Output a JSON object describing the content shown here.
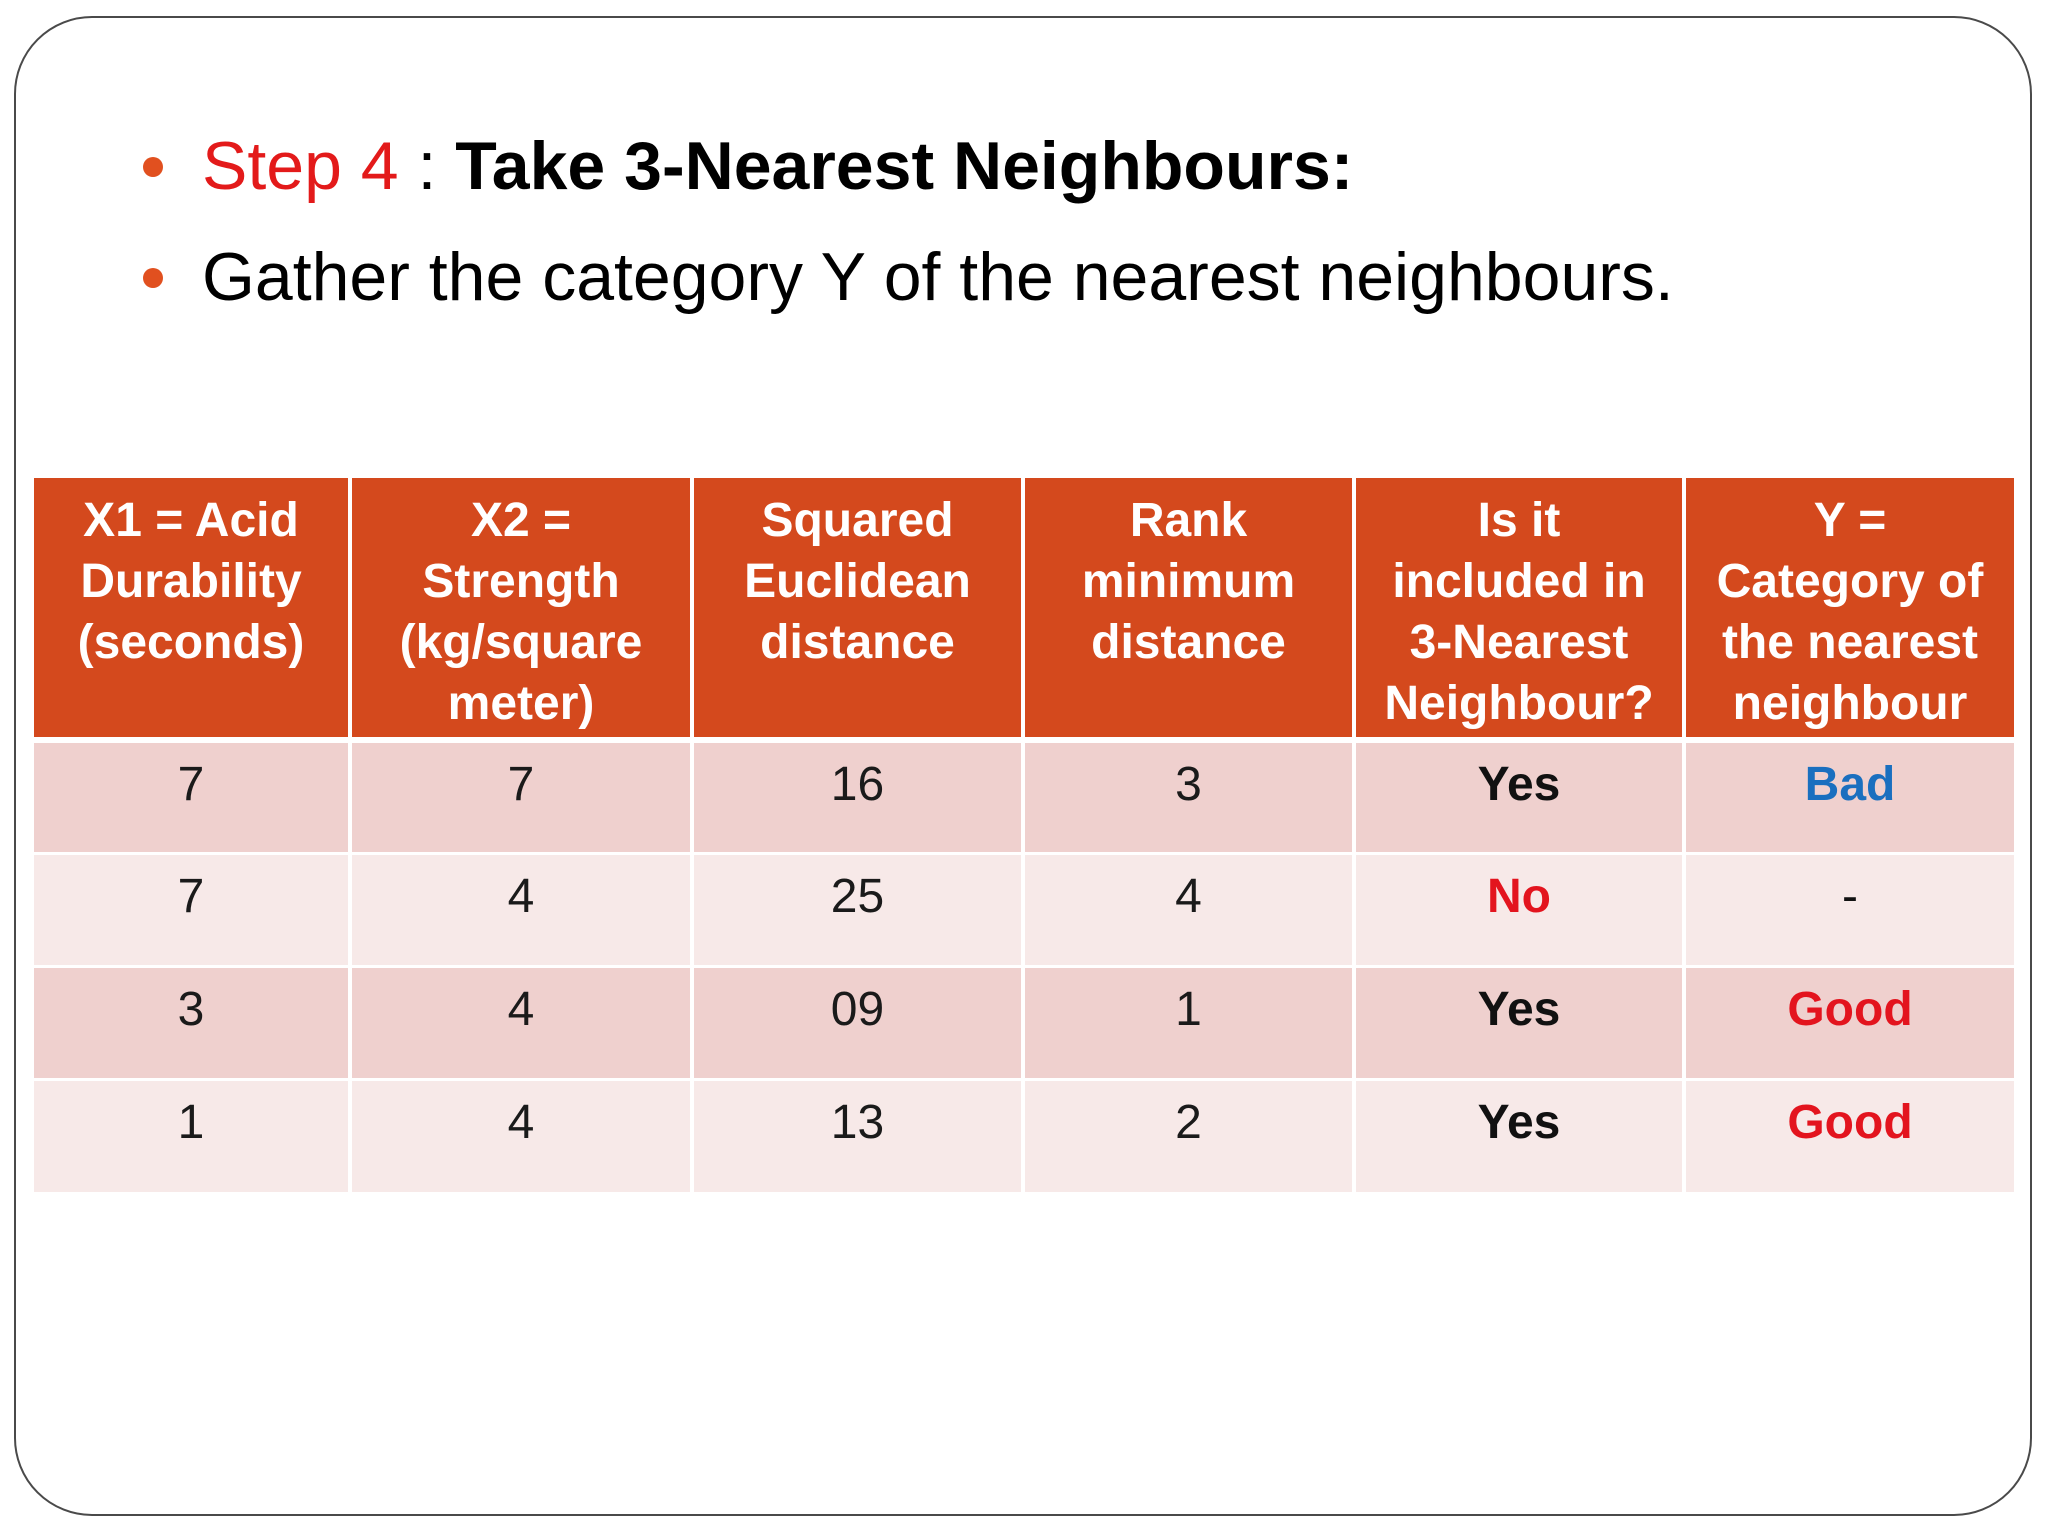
{
  "colors": {
    "header_bg": "#d4491d",
    "row_dark": "#efd0ce",
    "row_light": "#f7e9e8",
    "bullet_dot": "#e1501f",
    "step_label": "#e31a1a",
    "bad": "#1a6fbf",
    "good": "#e3141e",
    "no": "#e3141e",
    "text": "#111111"
  },
  "bullets": [
    {
      "step_label": "Step 4",
      "separator": " : ",
      "title": "Take 3-Nearest Neighbours:"
    },
    {
      "text": "Gather the category Y of the nearest neighbours."
    }
  ],
  "table": {
    "headers": [
      [
        "X1 = Acid",
        "Durability",
        "(seconds)"
      ],
      [
        "X2 =",
        "Strength",
        "(kg/square",
        "meter)"
      ],
      [
        "Squared",
        "Euclidean",
        "distance"
      ],
      [
        "Rank",
        "minimum",
        "distance"
      ],
      [
        "Is it",
        "included in",
        "3-Nearest",
        "Neighbour?"
      ],
      [
        "Y =",
        "Category of",
        "the nearest",
        "neighbour"
      ]
    ],
    "rows": [
      {
        "x1": "7",
        "x2": "7",
        "distance": "16",
        "rank": "3",
        "included": "Yes",
        "included_color": "#111111",
        "category": "Bad",
        "category_color": "#1a6fbf"
      },
      {
        "x1": "7",
        "x2": "4",
        "distance": "25",
        "rank": "4",
        "included": "No",
        "included_color": "#e3141e",
        "category": "-",
        "category_color": "#111111"
      },
      {
        "x1": "3",
        "x2": "4",
        "distance": "09",
        "rank": "1",
        "included": "Yes",
        "included_color": "#111111",
        "category": "Good",
        "category_color": "#e3141e"
      },
      {
        "x1": "1",
        "x2": "4",
        "distance": "13",
        "rank": "2",
        "included": "Yes",
        "included_color": "#111111",
        "category": "Good",
        "category_color": "#e3141e"
      }
    ]
  }
}
